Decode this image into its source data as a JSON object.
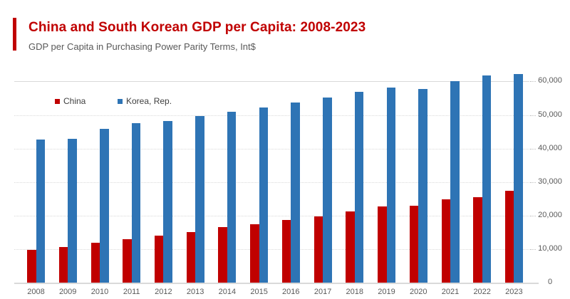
{
  "header": {
    "title": "China and South Korean GDP per Capita: 2008-2023",
    "subtitle": "GDP per Capita in Purchasing Power Parity Terms, Int$",
    "accent_color": "#C00000",
    "title_color": "#C00000"
  },
  "legend": {
    "items": [
      {
        "label": "China",
        "color": "#C00000"
      },
      {
        "label": "Korea, Rep.",
        "color": "#2E74B5"
      }
    ]
  },
  "chart_data": {
    "type": "bar",
    "title": "China and South Korean GDP per Capita: 2008-2023",
    "subtitle": "GDP per Capita in Purchasing Power Parity Terms, Int$",
    "xlabel": "",
    "ylabel": "",
    "y_axis_side": "right",
    "ylim": [
      0,
      65000
    ],
    "yticks": [
      0,
      10000,
      20000,
      30000,
      40000,
      50000,
      60000
    ],
    "ytick_labels": [
      "0",
      "10,000",
      "20,000",
      "30,000",
      "40,000",
      "50,000",
      "60,000"
    ],
    "grid": "horizontal-dotted",
    "solid_gridline_at": 60000,
    "legend_position": "top-left-inside",
    "categories": [
      "2008",
      "2009",
      "2010",
      "2011",
      "2012",
      "2013",
      "2014",
      "2015",
      "2016",
      "2017",
      "2018",
      "2019",
      "2020",
      "2021",
      "2022",
      "2023"
    ],
    "series": [
      {
        "name": "China",
        "color": "#C00000",
        "values": [
          9800,
          10600,
          11900,
          13000,
          14000,
          15100,
          16500,
          17400,
          18600,
          19800,
          21200,
          22700,
          22900,
          24800,
          25500,
          27300
        ]
      },
      {
        "name": "Korea, Rep.",
        "color": "#2E74B5",
        "values": [
          42700,
          43000,
          45900,
          47500,
          48300,
          49600,
          51000,
          52200,
          53700,
          55300,
          56900,
          58100,
          57700,
          60200,
          61800,
          62300
        ]
      }
    ]
  }
}
